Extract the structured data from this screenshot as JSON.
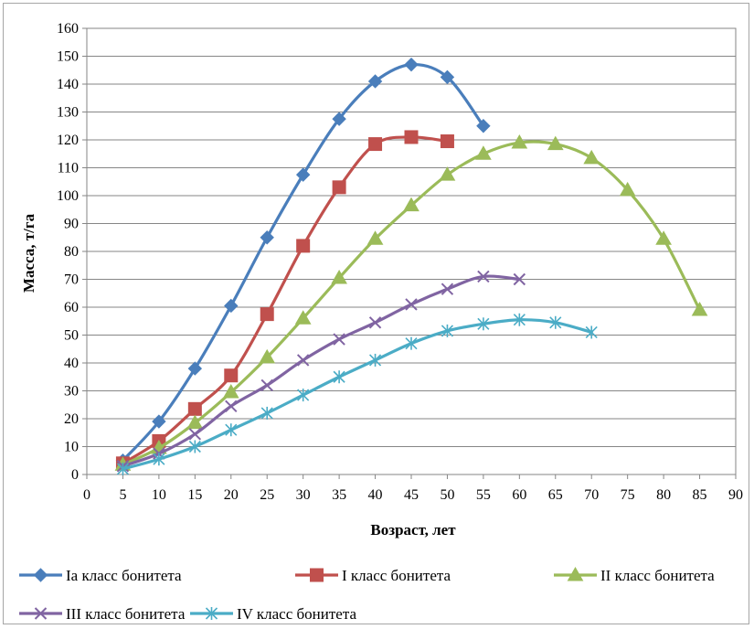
{
  "chart_data": {
    "type": "line",
    "xlabel": "Возраст, лет",
    "ylabel": "Масса, т/га",
    "xlim": [
      0,
      90
    ],
    "ylim": [
      0,
      160
    ],
    "xticks": [
      0,
      5,
      10,
      15,
      20,
      25,
      30,
      35,
      40,
      45,
      50,
      55,
      60,
      65,
      70,
      75,
      80,
      85,
      90
    ],
    "yticks": [
      0,
      10,
      20,
      30,
      40,
      50,
      60,
      70,
      80,
      90,
      100,
      110,
      120,
      130,
      140,
      150,
      160
    ],
    "grid": "horizontal",
    "legend_position": "bottom",
    "series": [
      {
        "name": "Ia класс бонитета",
        "color": "#4a7ebb",
        "marker": "diamond",
        "x": [
          5,
          10,
          15,
          20,
          25,
          30,
          35,
          40,
          45,
          50,
          55
        ],
        "y": [
          5,
          19,
          38,
          60.5,
          85,
          107.5,
          127.5,
          141,
          147,
          142.5,
          125
        ]
      },
      {
        "name": "I класс бонитета",
        "color": "#c0504d",
        "marker": "square",
        "x": [
          5,
          10,
          15,
          20,
          25,
          30,
          35,
          40,
          45,
          50
        ],
        "y": [
          4,
          12,
          23.5,
          35.5,
          57.5,
          82,
          103,
          118.5,
          121,
          119.5
        ]
      },
      {
        "name": "II класс бонитета",
        "color": "#9bbb59",
        "marker": "triangle",
        "x": [
          5,
          10,
          15,
          20,
          25,
          30,
          35,
          40,
          45,
          50,
          55,
          60,
          65,
          70,
          75,
          80,
          85
        ],
        "y": [
          3.5,
          9.5,
          18.5,
          29.5,
          42,
          56,
          70.5,
          84.5,
          96.5,
          107.5,
          115,
          119,
          118.5,
          113.5,
          102,
          84.5,
          59
        ]
      },
      {
        "name": "III класс бонитета",
        "color": "#8064a2",
        "marker": "x",
        "x": [
          5,
          10,
          15,
          20,
          25,
          30,
          35,
          40,
          45,
          50,
          55,
          60
        ],
        "y": [
          3,
          7.5,
          14.5,
          24.5,
          32,
          41,
          48.5,
          54.5,
          61,
          66.5,
          71,
          70
        ]
      },
      {
        "name": "IV класс бонитета",
        "color": "#4bacc6",
        "marker": "asterisk",
        "x": [
          5,
          10,
          15,
          20,
          25,
          30,
          35,
          40,
          45,
          50,
          55,
          60,
          65,
          70
        ],
        "y": [
          2,
          5.5,
          10,
          16,
          22,
          28.5,
          35,
          41,
          47,
          51.5,
          54,
          55.5,
          54.5,
          51
        ]
      }
    ]
  }
}
